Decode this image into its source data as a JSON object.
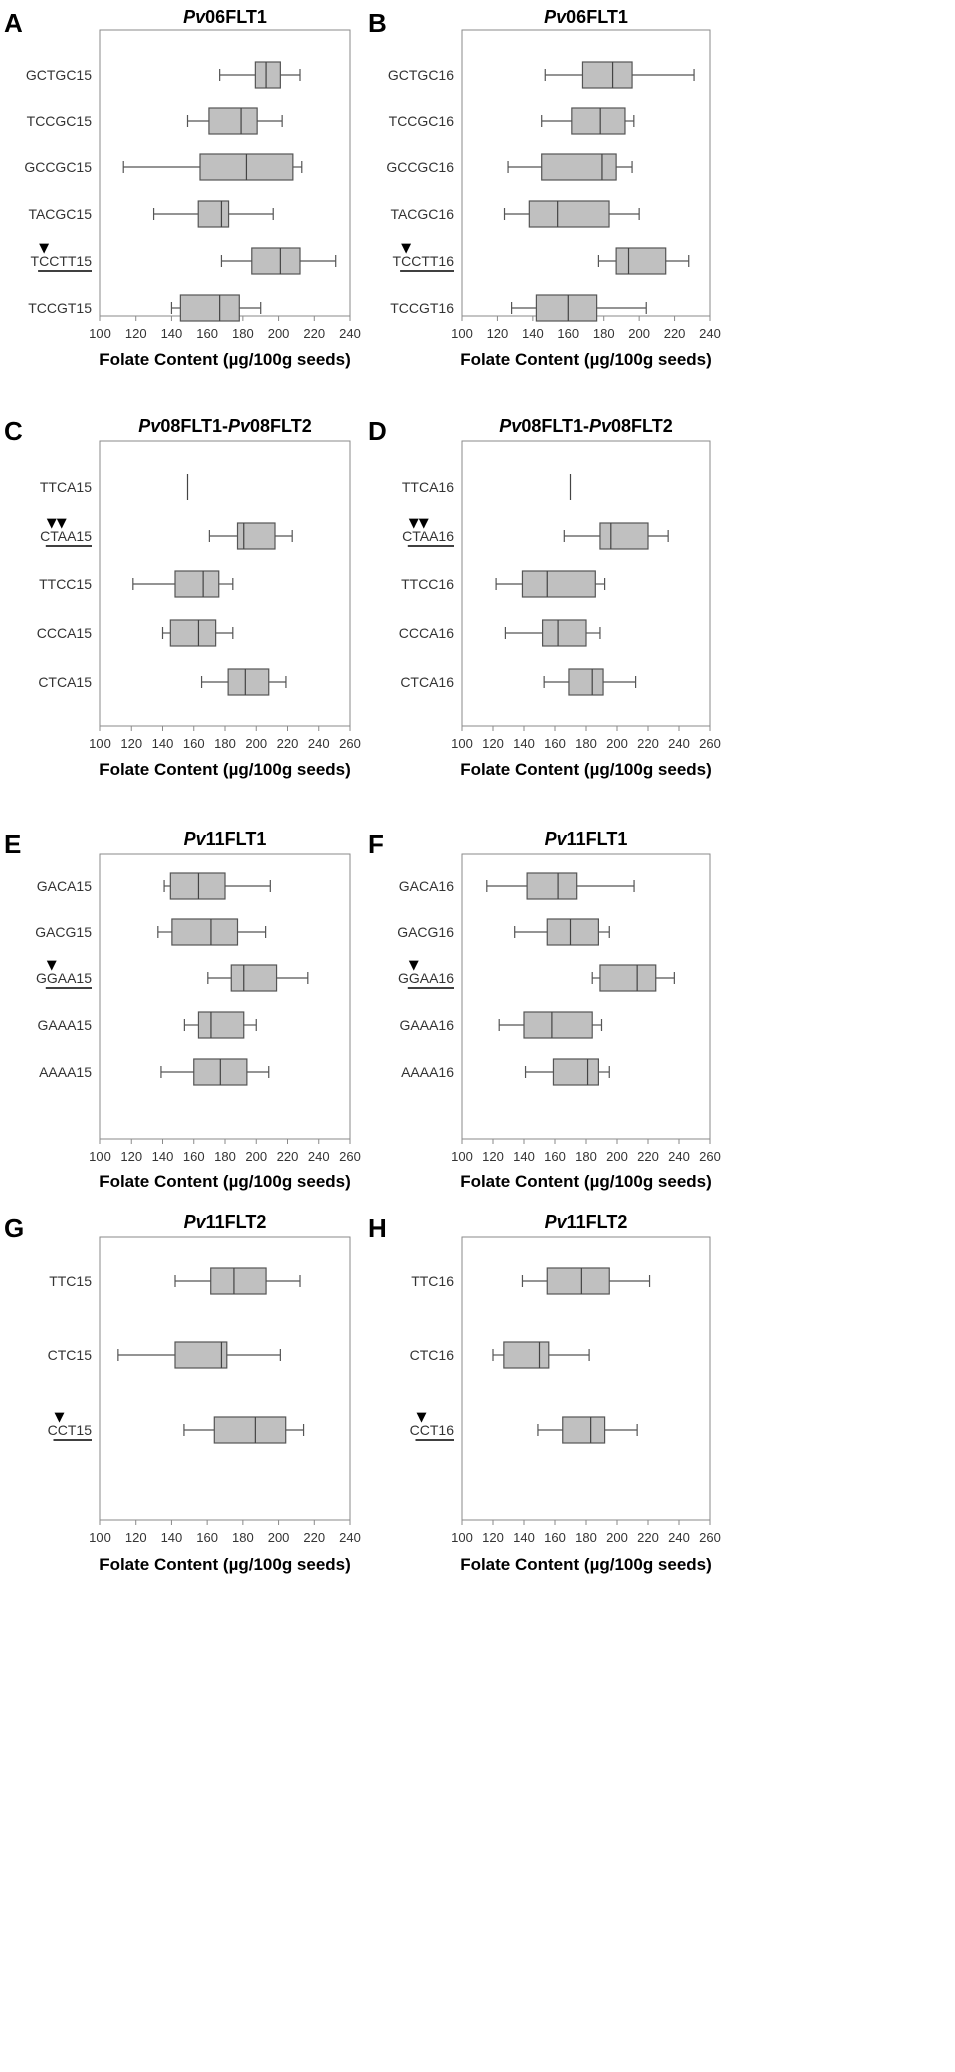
{
  "chart_data": [
    {
      "panel": "A",
      "type": "box",
      "title_italic": "Pv",
      "title_rest": "06FLT1",
      "xlabel": "Folate Content (µg/100g seeds)",
      "xlim": [
        100,
        240
      ],
      "xticks": [
        "100",
        "120",
        "140",
        "160",
        "180",
        "200",
        "220",
        "240"
      ],
      "categories": [
        {
          "label": "GCTGC15",
          "stats": [
            167,
            187,
            193,
            201,
            212
          ],
          "marker": null
        },
        {
          "label": "TCCGC15",
          "stats": [
            149,
            161,
            179,
            188,
            202
          ],
          "marker": null
        },
        {
          "label": "GCCGC15",
          "stats": [
            113,
            156,
            182,
            208,
            213
          ],
          "marker": null
        },
        {
          "label": "TACGC15",
          "stats": [
            130,
            155,
            168,
            172,
            197
          ],
          "marker": null
        },
        {
          "label": "TCCTT15",
          "stats": [
            168,
            185,
            201,
            212,
            232
          ],
          "marker": "▼"
        },
        {
          "label": "TCCGT15",
          "stats": [
            140,
            145,
            167,
            178,
            190
          ],
          "marker": null
        }
      ]
    },
    {
      "panel": "B",
      "type": "box",
      "title_italic": "Pv",
      "title_rest": "06FLT1",
      "xlabel": "Folate Content (µg/100g seeds)",
      "xlim": [
        100,
        240
      ],
      "xticks": [
        "100",
        "120",
        "140",
        "160",
        "180",
        "200",
        "220",
        "240"
      ],
      "categories": [
        {
          "label": "GCTGC16",
          "stats": [
            147,
            168,
            185,
            196,
            231
          ],
          "marker": null
        },
        {
          "label": "TCCGC16",
          "stats": [
            145,
            162,
            178,
            192,
            197
          ],
          "marker": null
        },
        {
          "label": "GCCGC16",
          "stats": [
            126,
            145,
            179,
            187,
            196
          ],
          "marker": null
        },
        {
          "label": "TACGC16",
          "stats": [
            124,
            138,
            154,
            183,
            200
          ],
          "marker": null
        },
        {
          "label": "TCCTT16",
          "stats": [
            177,
            187,
            194,
            215,
            228
          ],
          "marker": "▼"
        },
        {
          "label": "TCCGT16",
          "stats": [
            128,
            142,
            160,
            176,
            204
          ],
          "marker": null
        }
      ]
    },
    {
      "panel": "C",
      "type": "box",
      "title_italic": "Pv",
      "title_rest": "08FLT1-",
      "title_italic2": "Pv",
      "title_rest2": "08FLT2",
      "xlabel": "Folate Content (µg/100g seeds)",
      "xlim": [
        100,
        260
      ],
      "xticks": [
        "100",
        "120",
        "140",
        "160",
        "180",
        "200",
        "220",
        "240",
        "260"
      ],
      "categories": [
        {
          "label": "TTCA15",
          "stats": [
            156,
            156,
            156,
            156,
            156
          ],
          "marker": null
        },
        {
          "label": "CTAA15",
          "stats": [
            170,
            188,
            192,
            212,
            223
          ],
          "marker": "▼▼"
        },
        {
          "label": "TTCC15",
          "stats": [
            121,
            148,
            166,
            176,
            185
          ],
          "marker": null
        },
        {
          "label": "CCCA15",
          "stats": [
            140,
            145,
            163,
            174,
            185
          ],
          "marker": null
        },
        {
          "label": "CTCA15",
          "stats": [
            165,
            182,
            193,
            208,
            219
          ],
          "marker": null
        }
      ]
    },
    {
      "panel": "D",
      "type": "box",
      "title_italic": "Pv",
      "title_rest": "08FLT1-",
      "title_italic2": "Pv",
      "title_rest2": "08FLT2",
      "xlabel": "Folate Content (µg/100g seeds)",
      "xlim": [
        100,
        260
      ],
      "xticks": [
        "100",
        "120",
        "140",
        "160",
        "180",
        "200",
        "220",
        "240",
        "260"
      ],
      "categories": [
        {
          "label": "TTCA16",
          "stats": [
            170,
            170,
            170,
            170,
            170
          ],
          "marker": null
        },
        {
          "label": "CTAA16",
          "stats": [
            166,
            189,
            196,
            220,
            233
          ],
          "marker": "▼▼"
        },
        {
          "label": "TTCC16",
          "stats": [
            122,
            139,
            155,
            186,
            192
          ],
          "marker": null
        },
        {
          "label": "CCCA16",
          "stats": [
            128,
            152,
            162,
            180,
            189
          ],
          "marker": null
        },
        {
          "label": "CTCA16",
          "stats": [
            153,
            169,
            184,
            191,
            212
          ],
          "marker": null
        }
      ]
    },
    {
      "panel": "E",
      "type": "box",
      "title_italic": "Pv",
      "title_rest": "11FLT1",
      "xlabel": "Folate Content (µg/100g seeds)",
      "xlim": [
        100,
        260
      ],
      "xticks": [
        "100",
        "120",
        "140",
        "160",
        "180",
        "200",
        "220",
        "240",
        "260"
      ],
      "categories": [
        {
          "label": "GACA15",
          "stats": [
            141,
            145,
            163,
            180,
            209
          ],
          "marker": null
        },
        {
          "label": "GACG15",
          "stats": [
            137,
            146,
            171,
            188,
            206
          ],
          "marker": null
        },
        {
          "label": "GGAA15",
          "stats": [
            169,
            184,
            192,
            213,
            233
          ],
          "marker": "▼"
        },
        {
          "label": "GAAA15",
          "stats": [
            154,
            163,
            171,
            192,
            200
          ],
          "marker": null
        },
        {
          "label": "AAAA15",
          "stats": [
            139,
            160,
            177,
            194,
            208
          ],
          "marker": null
        }
      ]
    },
    {
      "panel": "F",
      "type": "box",
      "title_italic": "Pv",
      "title_rest": "11FLT1",
      "xlabel": "Folate Content (µg/100g seeds)",
      "xlim": [
        100,
        260
      ],
      "xticks": [
        "100",
        "120",
        "140",
        "160",
        "180",
        "200",
        "220",
        "240",
        "260"
      ],
      "categories": [
        {
          "label": "GACA16",
          "stats": [
            116,
            142,
            162,
            174,
            211
          ],
          "marker": null
        },
        {
          "label": "GACG16",
          "stats": [
            134,
            155,
            170,
            188,
            195
          ],
          "marker": null
        },
        {
          "label": "GGAA16",
          "stats": [
            184,
            189,
            213,
            225,
            237
          ],
          "marker": "▼"
        },
        {
          "label": "GAAA16",
          "stats": [
            124,
            140,
            158,
            184,
            190
          ],
          "marker": null
        },
        {
          "label": "AAAA16",
          "stats": [
            141,
            159,
            181,
            188,
            195
          ],
          "marker": null
        }
      ]
    },
    {
      "panel": "G",
      "type": "box",
      "title_italic": "Pv",
      "title_rest": "11FLT2",
      "xlabel": "Folate Content (µg/100g seeds)",
      "xlim": [
        100,
        240
      ],
      "xticks": [
        "100",
        "120",
        "140",
        "160",
        "180",
        "200",
        "220",
        "240"
      ],
      "categories": [
        {
          "label": "TTC15",
          "stats": [
            142,
            162,
            175,
            193,
            212
          ],
          "marker": null
        },
        {
          "label": "CTC15",
          "stats": [
            110,
            142,
            168,
            171,
            201
          ],
          "marker": null
        },
        {
          "label": "CCT15",
          "stats": [
            147,
            164,
            187,
            204,
            214
          ],
          "marker": "▼"
        }
      ]
    },
    {
      "panel": "H",
      "type": "box",
      "title_italic": "Pv",
      "title_rest": "11FLT2",
      "xlabel": "Folate Content (µg/100g seeds)",
      "xlim": [
        100,
        260
      ],
      "xticks": [
        "100",
        "120",
        "140",
        "160",
        "180",
        "200",
        "220",
        "240",
        "260"
      ],
      "categories": [
        {
          "label": "TTC16",
          "stats": [
            139,
            155,
            177,
            195,
            221
          ],
          "marker": null
        },
        {
          "label": "CTC16",
          "stats": [
            120,
            127,
            150,
            156,
            182
          ],
          "marker": null
        },
        {
          "label": "CCT16",
          "stats": [
            149,
            165,
            183,
            192,
            213
          ],
          "marker": "▼"
        }
      ]
    }
  ]
}
